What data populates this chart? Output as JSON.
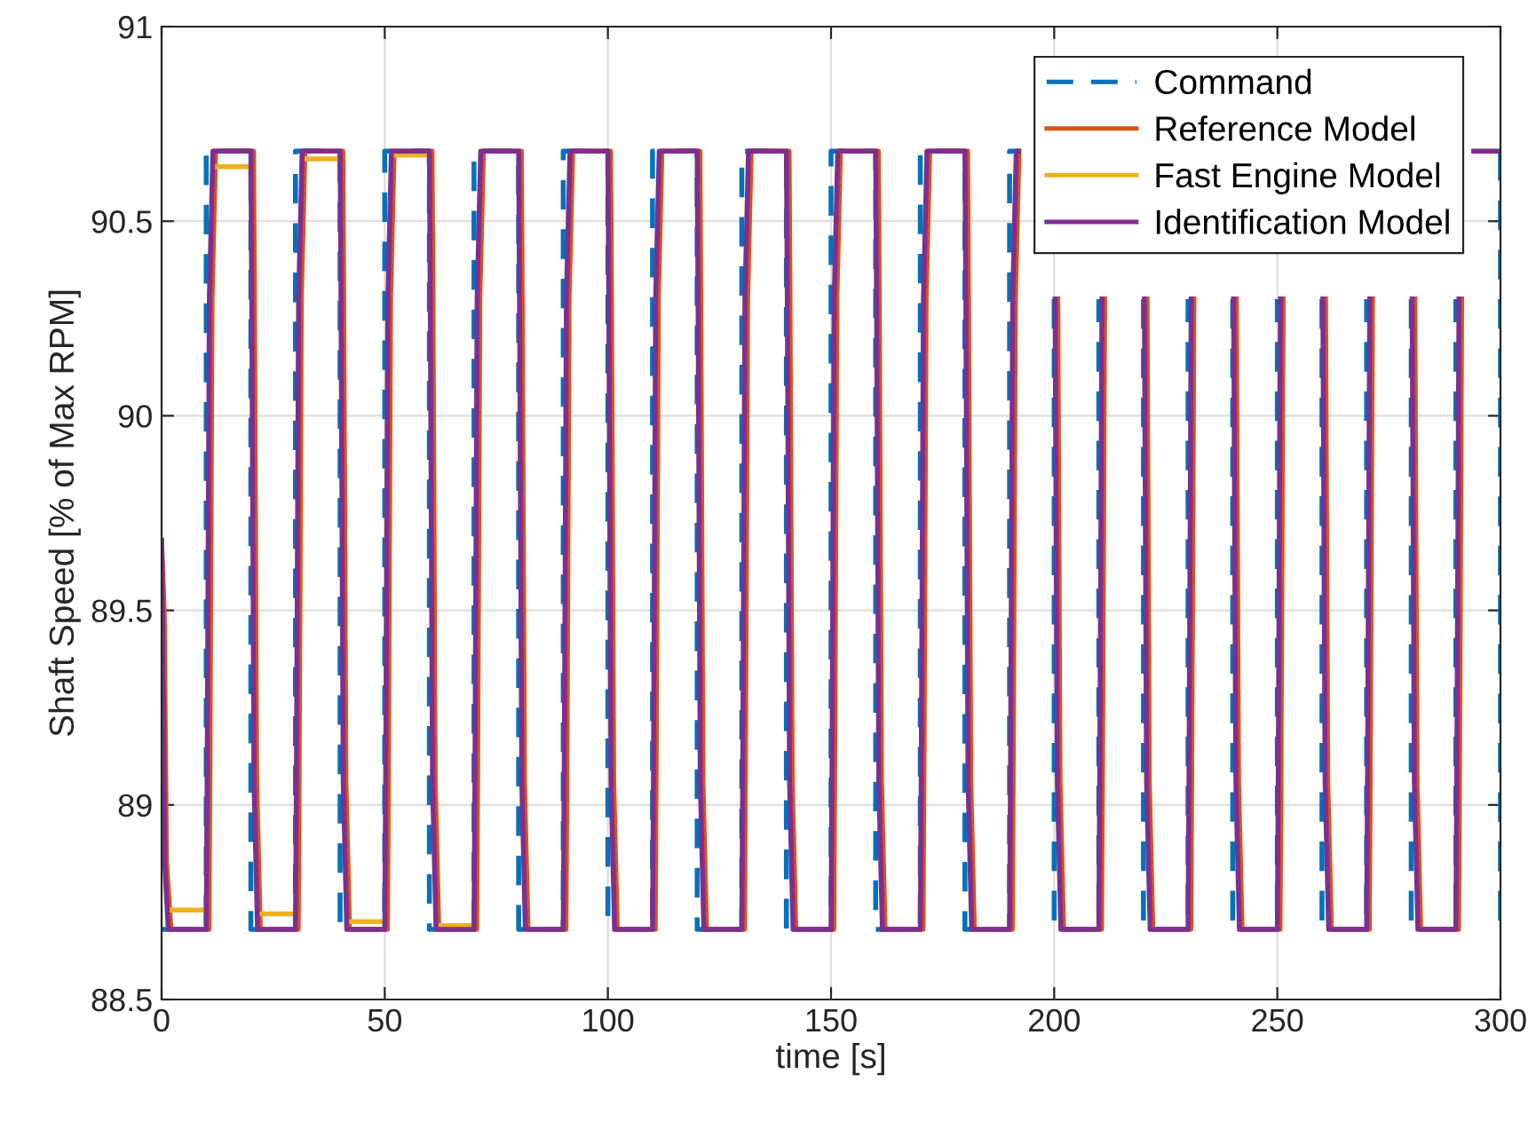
{
  "chart_data": {
    "type": "line",
    "xlabel": "time [s]",
    "ylabel": "Shaft Speed [% of Max RPM]",
    "xlim": [
      0,
      300
    ],
    "xticks": [
      0,
      50,
      100,
      150,
      200,
      250,
      300
    ],
    "ylim": [
      88.5,
      91
    ],
    "yticks": [
      88.5,
      89,
      89.5,
      90,
      90.5,
      91
    ],
    "grid": true,
    "legend": "top right",
    "marker": "none",
    "series": [
      {
        "name": "Command",
        "color": "#0072bd",
        "line_style": "dashed",
        "x": [
          0,
          10,
          10,
          20,
          20,
          30,
          30,
          40,
          40,
          50,
          50,
          60,
          60,
          70,
          70,
          80,
          80,
          90,
          90,
          100,
          100,
          110,
          110,
          120,
          120,
          130,
          130,
          140,
          140,
          150,
          150,
          160,
          160,
          170,
          170,
          180,
          180,
          190,
          190,
          192,
          null,
          200,
          200,
          210,
          210,
          null,
          null,
          220,
          220,
          230,
          230,
          null,
          null,
          240,
          240,
          250,
          250,
          null,
          null,
          260,
          260,
          270,
          270,
          null,
          null,
          280,
          280,
          290,
          290,
          null,
          300,
          300
        ],
        "values": [
          88.68,
          88.68,
          90.68,
          90.68,
          88.68,
          88.68,
          90.68,
          90.68,
          88.68,
          88.68,
          90.68,
          90.68,
          88.68,
          88.68,
          90.68,
          90.68,
          88.68,
          88.68,
          90.68,
          90.68,
          88.68,
          88.68,
          90.68,
          90.68,
          88.68,
          88.68,
          90.68,
          90.68,
          88.68,
          88.68,
          90.68,
          90.68,
          88.68,
          88.68,
          90.68,
          90.68,
          88.68,
          88.68,
          90.68,
          90.68,
          null,
          90.3,
          88.68,
          88.68,
          90.3,
          null,
          null,
          90.3,
          88.68,
          88.68,
          90.3,
          null,
          null,
          90.3,
          88.68,
          88.68,
          90.3,
          null,
          null,
          90.3,
          88.68,
          88.68,
          90.3,
          null,
          null,
          90.3,
          88.68,
          88.68,
          90.3,
          null,
          90.68,
          88.68
        ]
      },
      {
        "name": "Reference Model",
        "color": "#d95319",
        "line_style": "solid",
        "x": [
          0,
          0.6,
          1.1,
          2.1,
          10.6,
          10.8,
          11.3,
          12.1,
          20.6,
          20.8,
          21.3,
          22.1,
          30.6,
          30.8,
          31.3,
          32.1,
          40.6,
          40.8,
          41.3,
          42.1,
          50.6,
          50.8,
          51.3,
          52.1,
          60.6,
          60.8,
          61.3,
          62.1,
          70.6,
          70.8,
          71.3,
          72.1,
          80.6,
          80.8,
          81.3,
          82.1,
          90.6,
          90.8,
          91.3,
          92.1,
          100.6,
          100.8,
          101.3,
          102.1,
          110.6,
          110.8,
          111.3,
          112.1,
          120.6,
          120.8,
          121.3,
          122.1,
          130.6,
          130.8,
          131.3,
          132.1,
          140.6,
          140.8,
          141.3,
          142.1,
          150.6,
          150.8,
          151.3,
          152.1,
          160.6,
          160.8,
          161.3,
          162.1,
          170.6,
          170.8,
          171.3,
          172.1,
          180.6,
          180.8,
          181.3,
          182.1,
          190.6,
          190.8,
          191.3,
          192.1,
          192.1,
          200.6,
          200.8,
          201.3,
          202.1,
          210.6,
          210.8,
          211.3,
          212.1,
          220.6,
          220.8,
          221.3,
          222.1,
          230.6,
          230.8,
          231.3,
          232.1,
          240.6,
          240.8,
          241.3,
          242.1,
          250.6,
          250.8,
          251.3,
          252.1,
          260.6,
          260.8,
          261.3,
          262.1,
          270.6,
          270.8,
          271.3,
          272.1,
          280.6,
          280.8,
          281.3,
          282.1,
          290.6,
          290.8,
          291.3
        ],
        "values": [
          89.68,
          89.49,
          88.85,
          88.68,
          88.68,
          89.06,
          90.3,
          90.68,
          90.68,
          90.3,
          89.06,
          88.68,
          88.68,
          89.06,
          90.3,
          90.68,
          90.68,
          90.3,
          89.06,
          88.68,
          88.68,
          89.06,
          90.3,
          90.68,
          90.68,
          90.3,
          89.06,
          88.68,
          88.68,
          89.06,
          90.3,
          90.68,
          90.68,
          90.3,
          89.06,
          88.68,
          88.68,
          89.06,
          90.3,
          90.68,
          90.68,
          90.3,
          89.06,
          88.68,
          88.68,
          89.06,
          90.3,
          90.68,
          90.68,
          90.3,
          89.06,
          88.68,
          88.68,
          89.06,
          90.3,
          90.68,
          90.68,
          90.3,
          89.06,
          88.68,
          88.68,
          89.06,
          90.3,
          90.68,
          90.68,
          90.3,
          89.06,
          88.68,
          88.68,
          89.06,
          90.3,
          90.68,
          90.68,
          90.3,
          89.06,
          88.68,
          88.68,
          89.06,
          90.3,
          90.68,
          90.68,
          null,
          90.3,
          89.06,
          88.68,
          88.68,
          89.06,
          90.3,
          null,
          null,
          90.3,
          89.06,
          88.68,
          88.68,
          89.06,
          90.3,
          null,
          null,
          90.3,
          89.06,
          88.68,
          88.68,
          89.06,
          90.3,
          null,
          null,
          90.3,
          89.06,
          88.68,
          88.68,
          89.06,
          90.3,
          null,
          null,
          90.3,
          89.06,
          88.68,
          88.68,
          89.06,
          90.3
        ]
      },
      {
        "name": "Fast Engine Model",
        "color": "#edb120",
        "line_style": "solid",
        "x": [
          1.5,
          9.5,
          10,
          11.5,
          19.5,
          20,
          21.5,
          29.5,
          30,
          31.5,
          39.5,
          40,
          41.5,
          49.5,
          50,
          51.5,
          59.5,
          60,
          61.5,
          69.5
        ],
        "values": [
          88.73,
          88.73,
          null,
          90.64,
          90.64,
          null,
          88.72,
          88.72,
          null,
          90.66,
          90.66,
          null,
          88.7,
          88.7,
          null,
          90.67,
          90.67,
          null,
          88.69,
          88.69
        ]
      },
      {
        "name": "Identification Model",
        "color": "#7e2f8e",
        "line_style": "solid",
        "x": [
          0,
          0.2,
          0.7,
          1.5,
          10,
          10.2,
          10.7,
          11.5,
          20,
          20.2,
          20.7,
          21.5,
          30,
          30.2,
          30.7,
          31.5,
          40,
          40.2,
          40.7,
          41.5,
          50,
          50.2,
          50.7,
          51.5,
          60,
          60.2,
          60.7,
          61.5,
          70,
          70.2,
          70.7,
          71.5,
          80,
          80.2,
          80.7,
          81.5,
          90,
          90.2,
          90.7,
          91.5,
          100,
          100.2,
          100.7,
          101.5,
          110,
          110.2,
          110.7,
          111.5,
          120,
          120.2,
          120.7,
          121.5,
          130,
          130.2,
          130.7,
          131.5,
          140,
          140.2,
          140.7,
          141.5,
          150,
          150.2,
          150.7,
          151.5,
          160,
          160.2,
          160.7,
          161.5,
          170,
          170.2,
          170.7,
          171.5,
          180,
          180.2,
          180.7,
          181.5,
          190,
          190.2,
          190.7,
          191.5,
          192,
          200,
          200.2,
          200.7,
          201.5,
          210,
          210.2,
          210.7,
          211.5,
          220,
          220.2,
          220.7,
          221.5,
          230,
          230.2,
          230.7,
          231.5,
          240,
          240.2,
          240.7,
          241.5,
          250,
          250.2,
          250.7,
          251.5,
          260,
          260.2,
          260.7,
          261.5,
          270,
          270.2,
          270.7,
          271.5,
          280,
          280.2,
          280.7,
          281.5,
          290,
          290.2,
          290.7,
          291.5,
          294,
          300
        ],
        "values": [
          89.68,
          89.49,
          88.85,
          88.68,
          88.68,
          89.06,
          90.3,
          90.68,
          90.68,
          90.3,
          89.06,
          88.68,
          88.68,
          89.06,
          90.3,
          90.68,
          90.68,
          90.3,
          89.06,
          88.68,
          88.68,
          89.06,
          90.3,
          90.68,
          90.68,
          90.3,
          89.06,
          88.68,
          88.68,
          89.06,
          90.3,
          90.68,
          90.68,
          90.3,
          89.06,
          88.68,
          88.68,
          89.06,
          90.3,
          90.68,
          90.68,
          90.3,
          89.06,
          88.68,
          88.68,
          89.06,
          90.3,
          90.68,
          90.68,
          90.3,
          89.06,
          88.68,
          88.68,
          89.06,
          90.3,
          90.68,
          90.68,
          90.3,
          89.06,
          88.68,
          88.68,
          89.06,
          90.3,
          90.68,
          90.68,
          90.3,
          89.06,
          88.68,
          88.68,
          89.06,
          90.3,
          90.68,
          90.68,
          90.3,
          89.06,
          88.68,
          88.68,
          89.06,
          90.3,
          90.68,
          90.68,
          null,
          90.3,
          89.06,
          88.68,
          88.68,
          89.06,
          90.3,
          null,
          null,
          90.3,
          89.06,
          88.68,
          88.68,
          89.06,
          90.3,
          null,
          null,
          90.3,
          89.06,
          88.68,
          88.68,
          89.06,
          90.3,
          null,
          null,
          90.3,
          89.06,
          88.68,
          88.68,
          89.06,
          90.3,
          null,
          null,
          90.3,
          89.06,
          88.68,
          88.68,
          89.06,
          90.3,
          null,
          90.68,
          90.68
        ]
      }
    ]
  }
}
